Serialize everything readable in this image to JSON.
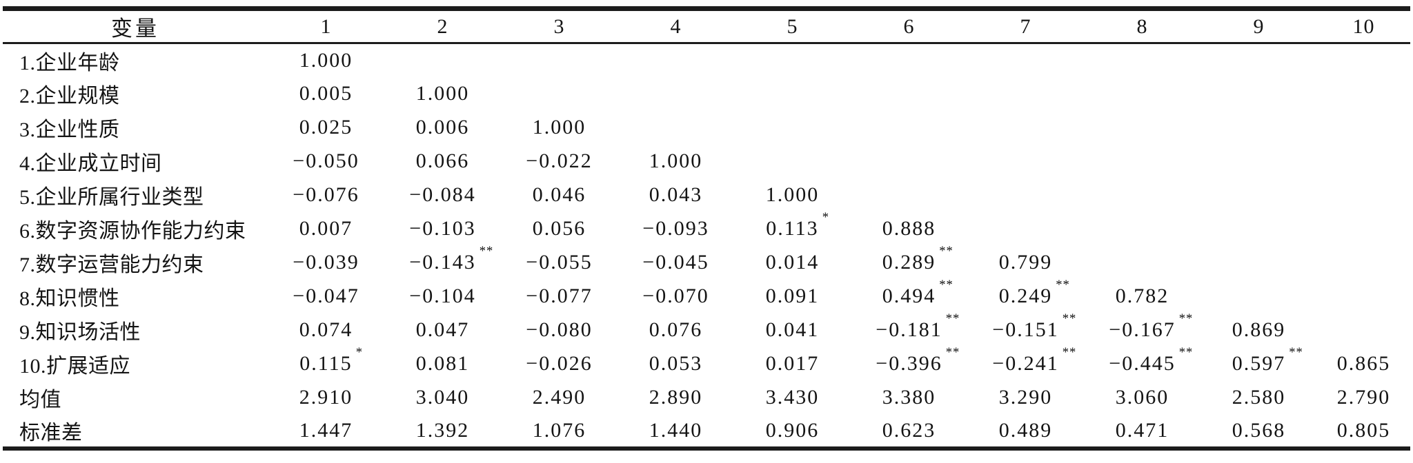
{
  "page": {
    "background_color": "#ffffff",
    "ink_color": "#1c1c1c"
  },
  "table": {
    "type": "correlation-matrix",
    "header": {
      "variable_label": "变量",
      "columns": [
        "1",
        "2",
        "3",
        "4",
        "5",
        "6",
        "7",
        "8",
        "9",
        "10"
      ]
    },
    "rows": [
      {
        "label": "1.企业年龄",
        "values": [
          "1.000"
        ]
      },
      {
        "label": "2.企业规模",
        "values": [
          "0.005",
          "1.000"
        ]
      },
      {
        "label": "3.企业性质",
        "values": [
          "0.025",
          "0.006",
          "1.000"
        ]
      },
      {
        "label": "4.企业成立时间",
        "values": [
          "−0.050",
          "0.066",
          "−0.022",
          "1.000"
        ]
      },
      {
        "label": "5.企业所属行业类型",
        "values": [
          "−0.076",
          "−0.084",
          "0.046",
          "0.043",
          "1.000"
        ]
      },
      {
        "label": "6.数字资源协作能力约束",
        "values": [
          "0.007",
          "−0.103",
          "0.056",
          "−0.093",
          "0.113*",
          "0.888"
        ]
      },
      {
        "label": "7.数字运营能力约束",
        "values": [
          "−0.039",
          "−0.143**",
          "−0.055",
          "−0.045",
          "0.014",
          "0.289**",
          "0.799"
        ]
      },
      {
        "label": "8.知识惯性",
        "values": [
          "−0.047",
          "−0.104",
          "−0.077",
          "−0.070",
          "0.091",
          "0.494**",
          "0.249**",
          "0.782"
        ]
      },
      {
        "label": "9.知识场活性",
        "values": [
          "0.074",
          "0.047",
          "−0.080",
          "0.076",
          "0.041",
          "−0.181**",
          "−0.151**",
          "−0.167**",
          "0.869"
        ]
      },
      {
        "label": "10.扩展适应",
        "values": [
          "0.115*",
          "0.081",
          "−0.026",
          "0.053",
          "0.017",
          "−0.396**",
          "−0.241**",
          "−0.445**",
          "0.597**",
          "0.865"
        ]
      },
      {
        "label": "均值",
        "values": [
          "2.910",
          "3.040",
          "2.490",
          "2.890",
          "3.430",
          "3.380",
          "3.290",
          "3.060",
          "2.580",
          "2.790"
        ]
      },
      {
        "label": "标准差",
        "values": [
          "1.447",
          "1.392",
          "1.076",
          "1.440",
          "0.906",
          "0.623",
          "0.489",
          "0.471",
          "0.568",
          "0.805"
        ]
      }
    ]
  }
}
